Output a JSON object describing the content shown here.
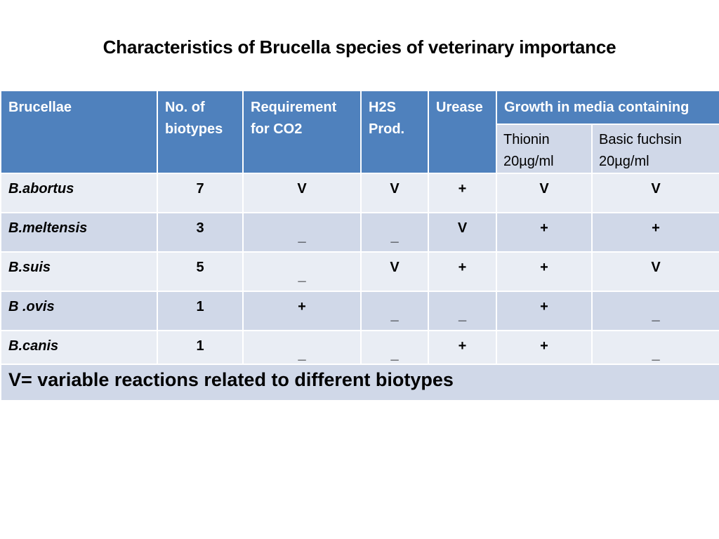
{
  "title": "Characteristics of Brucella species of veterinary importance",
  "headers": {
    "brucellae": "Brucellae",
    "biotypes": "No. of biotypes",
    "co2": "Requirement for CO2",
    "h2s": "H2S Prod.",
    "urease": "Urease",
    "growth": "Growth in media containing",
    "thionin": "Thionin 20µg/ml",
    "fuchsin": "Basic fuchsin 20µg/ml"
  },
  "rows": [
    {
      "name": "B.abortus",
      "biotypes": "7",
      "co2": "V",
      "h2s": "V",
      "urease": "+",
      "thionin": "V",
      "fuchsin": "V"
    },
    {
      "name": "B.meltensis",
      "biotypes": "3",
      "co2": "_",
      "h2s": "_",
      "urease": "V",
      "thionin": "+",
      "fuchsin": "+"
    },
    {
      "name": "B.suis",
      "biotypes": "5",
      "co2": "_",
      "h2s": "V",
      "urease": "+",
      "thionin": "+",
      "fuchsin": "V"
    },
    {
      "name": "B .ovis",
      "biotypes": "1",
      "co2": "+",
      "h2s": "_",
      "urease": "_",
      "thionin": "+",
      "fuchsin": "_"
    },
    {
      "name": "B.canis",
      "biotypes": "1",
      "co2": "_",
      "h2s": "_",
      "urease": "+",
      "thionin": "+",
      "fuchsin": "_"
    }
  ],
  "footnote": "V= variable reactions related to different biotypes"
}
